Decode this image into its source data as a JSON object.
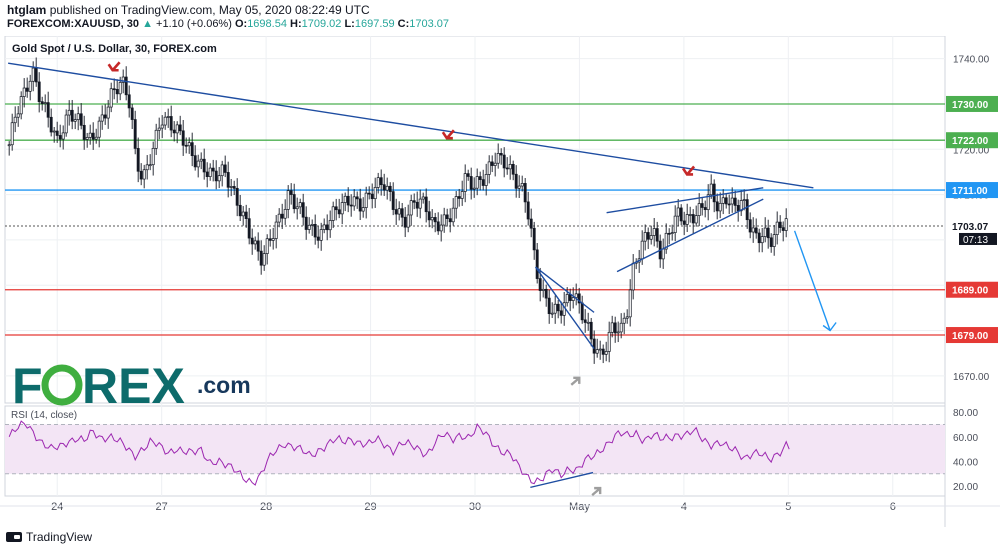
{
  "header": {
    "publisher": "htglam",
    "published_text": "published on TradingView.com, May 05, 2020 08:22:49 UTC",
    "symbol": "FOREXCOM:XAUUSD, 30",
    "change_arrow": "▲",
    "change": "+1.10 (+0.06%)",
    "o_label": "O:",
    "o": "1698.54",
    "h_label": "H:",
    "h": "1709.02",
    "l_label": "L:",
    "l": "1697.59",
    "c_label": "C:",
    "c": "1703.07"
  },
  "footer": {
    "brand": "TradingView"
  },
  "watermark": {
    "text_left": "F",
    "text_right": "REX",
    "suffix": ".com"
  },
  "colors": {
    "up": "#26a69a",
    "down": "#ef5350",
    "candle": "#131722",
    "trend": "#1e4da1",
    "green_level": "#4caf50",
    "blue_level": "#2196f3",
    "red_level": "#e53935",
    "rsi_line": "#9c27b0",
    "rsi_band": "#f3e5f5",
    "arrow_red": "#c62828",
    "arrow_grey": "#9e9e9e",
    "projection": "#2196f3",
    "brand_teal": "#0d6b6b"
  },
  "chart_data": {
    "type": "candlestick",
    "title": "Gold Spot / U.S. Dollar, 30, FOREX.com",
    "ylim": [
      1664,
      1745
    ],
    "y_ticks": [
      1670,
      1680,
      1690,
      1700,
      1710,
      1720,
      1730,
      1740
    ],
    "y_tick_labels": [
      "1670.00",
      "1680.00",
      "1690.00",
      "1700.00",
      "1710.00",
      "1720.00",
      "1730.00",
      "1740.00"
    ],
    "x_ticks": [
      {
        "x": 0.5,
        "label": "24"
      },
      {
        "x": 1.5,
        "label": "27"
      },
      {
        "x": 2.5,
        "label": "28"
      },
      {
        "x": 3.5,
        "label": "29"
      },
      {
        "x": 4.5,
        "label": "30"
      },
      {
        "x": 5.5,
        "label": "May"
      },
      {
        "x": 6.5,
        "label": "4"
      },
      {
        "x": 7.5,
        "label": "5"
      },
      {
        "x": 8.5,
        "label": "6"
      }
    ],
    "xlim": [
      0,
      9
    ],
    "price_levels": [
      {
        "value": 1730.0,
        "label": "1730.00",
        "kind": "green"
      },
      {
        "value": 1722.0,
        "label": "1722.00",
        "kind": "green"
      },
      {
        "value": 1711.0,
        "label": "1711.00",
        "kind": "blue"
      },
      {
        "value": 1689.0,
        "label": "1689.00",
        "kind": "red"
      },
      {
        "value": 1679.0,
        "label": "1679.00",
        "kind": "red"
      }
    ],
    "last_price": {
      "value": 1703.07,
      "label": "1703.07",
      "countdown": "07:13"
    },
    "price_path": [
      [
        0.04,
        1721
      ],
      [
        0.1,
        1727
      ],
      [
        0.2,
        1732
      ],
      [
        0.26,
        1737
      ],
      [
        0.32,
        1733
      ],
      [
        0.42,
        1728
      ],
      [
        0.5,
        1722
      ],
      [
        0.62,
        1727
      ],
      [
        0.72,
        1725
      ],
      [
        0.8,
        1722
      ],
      [
        0.92,
        1727
      ],
      [
        1.02,
        1732
      ],
      [
        1.12,
        1734
      ],
      [
        1.2,
        1729
      ],
      [
        1.25,
        1718
      ],
      [
        1.32,
        1714
      ],
      [
        1.4,
        1720
      ],
      [
        1.5,
        1727
      ],
      [
        1.6,
        1724
      ],
      [
        1.7,
        1722
      ],
      [
        1.8,
        1719
      ],
      [
        1.9,
        1717
      ],
      [
        2.0,
        1714
      ],
      [
        2.1,
        1714
      ],
      [
        2.2,
        1709
      ],
      [
        2.3,
        1705
      ],
      [
        2.4,
        1699
      ],
      [
        2.46,
        1696
      ],
      [
        2.55,
        1700
      ],
      [
        2.64,
        1704
      ],
      [
        2.72,
        1710
      ],
      [
        2.82,
        1708
      ],
      [
        2.92,
        1703
      ],
      [
        3.02,
        1700
      ],
      [
        3.12,
        1704
      ],
      [
        3.22,
        1708
      ],
      [
        3.32,
        1710
      ],
      [
        3.42,
        1708
      ],
      [
        3.52,
        1710
      ],
      [
        3.62,
        1712
      ],
      [
        3.72,
        1708
      ],
      [
        3.82,
        1705
      ],
      [
        3.92,
        1709
      ],
      [
        4.02,
        1707
      ],
      [
        4.1,
        1702
      ],
      [
        4.2,
        1704
      ],
      [
        4.3,
        1708
      ],
      [
        4.4,
        1714
      ],
      [
        4.5,
        1711
      ],
      [
        4.6,
        1713
      ],
      [
        4.7,
        1719
      ],
      [
        4.8,
        1718
      ],
      [
        4.9,
        1713
      ],
      [
        4.96,
        1710
      ],
      [
        5.02,
        1704
      ],
      [
        5.08,
        1693
      ],
      [
        5.14,
        1688
      ],
      [
        5.24,
        1685
      ],
      [
        5.34,
        1686
      ],
      [
        5.44,
        1688
      ],
      [
        5.5,
        1684
      ],
      [
        5.56,
        1681
      ],
      [
        5.62,
        1677
      ],
      [
        5.7,
        1675
      ],
      [
        5.76,
        1678
      ],
      [
        5.82,
        1682
      ],
      [
        5.9,
        1680
      ],
      [
        5.96,
        1684
      ],
      [
        6.02,
        1693
      ],
      [
        6.08,
        1697
      ],
      [
        6.14,
        1701
      ],
      [
        6.2,
        1703
      ],
      [
        6.28,
        1698
      ],
      [
        6.36,
        1702
      ],
      [
        6.44,
        1705
      ],
      [
        6.52,
        1703
      ],
      [
        6.6,
        1705
      ],
      [
        6.68,
        1708
      ],
      [
        6.76,
        1712
      ],
      [
        6.84,
        1707
      ],
      [
        6.9,
        1709
      ],
      [
        6.98,
        1706
      ],
      [
        7.06,
        1708
      ],
      [
        7.12,
        1704
      ],
      [
        7.2,
        1701
      ],
      [
        7.26,
        1703
      ],
      [
        7.32,
        1700
      ],
      [
        7.4,
        1702
      ],
      [
        7.5,
        1703.07
      ]
    ],
    "trendlines": [
      {
        "x1": 0.03,
        "y1": 1739,
        "x2": 7.74,
        "y2": 1711.5
      },
      {
        "x1": 5.76,
        "y1": 1706,
        "x2": 7.26,
        "y2": 1711.5
      },
      {
        "x1": 5.86,
        "y1": 1693,
        "x2": 7.26,
        "y2": 1709
      },
      {
        "x1": 5.08,
        "y1": 1694,
        "x2": 5.64,
        "y2": 1676
      },
      {
        "x1": 5.08,
        "y1": 1694,
        "x2": 5.64,
        "y2": 1684
      }
    ],
    "projection": {
      "x1": 7.56,
      "y1": 1702,
      "x2": 7.9,
      "y2": 1680
    },
    "markers": [
      {
        "x": 1.04,
        "y": 1737,
        "color": "red"
      },
      {
        "x": 4.24,
        "y": 1722,
        "color": "red"
      },
      {
        "x": 6.54,
        "y": 1714,
        "color": "red"
      },
      {
        "x": 5.46,
        "y": 1670,
        "color": "grey",
        "dir": "up"
      },
      {
        "x": 5.66,
        "y_rsi": 20,
        "color": "grey",
        "dir": "up"
      }
    ],
    "rsi": {
      "label": "RSI (14, close)",
      "ylim": [
        12,
        85
      ],
      "ticks": [
        20,
        40,
        60,
        80
      ],
      "tick_labels": [
        "20.00",
        "40.00",
        "60.00",
        "80.00"
      ],
      "band": [
        30,
        70
      ],
      "values": [
        [
          0.04,
          60
        ],
        [
          0.12,
          66
        ],
        [
          0.2,
          71
        ],
        [
          0.28,
          64
        ],
        [
          0.36,
          55
        ],
        [
          0.44,
          49
        ],
        [
          0.52,
          51
        ],
        [
          0.6,
          57
        ],
        [
          0.68,
          60
        ],
        [
          0.76,
          56
        ],
        [
          0.84,
          63
        ],
        [
          0.92,
          59
        ],
        [
          1.0,
          62
        ],
        [
          1.08,
          57
        ],
        [
          1.16,
          50
        ],
        [
          1.24,
          44
        ],
        [
          1.32,
          52
        ],
        [
          1.4,
          57
        ],
        [
          1.48,
          51
        ],
        [
          1.56,
          46
        ],
        [
          1.64,
          52
        ],
        [
          1.72,
          49
        ],
        [
          1.8,
          46
        ],
        [
          1.88,
          48
        ],
        [
          1.96,
          40
        ],
        [
          2.04,
          42
        ],
        [
          2.12,
          36
        ],
        [
          2.2,
          32
        ],
        [
          2.3,
          27
        ],
        [
          2.38,
          24
        ],
        [
          2.44,
          27
        ],
        [
          2.52,
          40
        ],
        [
          2.6,
          50
        ],
        [
          2.68,
          56
        ],
        [
          2.76,
          52
        ],
        [
          2.84,
          48
        ],
        [
          2.92,
          44
        ],
        [
          3.0,
          50
        ],
        [
          3.08,
          54
        ],
        [
          3.16,
          57
        ],
        [
          3.24,
          55
        ],
        [
          3.32,
          59
        ],
        [
          3.4,
          56
        ],
        [
          3.48,
          53
        ],
        [
          3.56,
          57
        ],
        [
          3.64,
          54
        ],
        [
          3.72,
          50
        ],
        [
          3.8,
          55
        ],
        [
          3.88,
          52
        ],
        [
          3.96,
          50
        ],
        [
          4.04,
          47
        ],
        [
          4.12,
          56
        ],
        [
          4.2,
          61
        ],
        [
          4.28,
          57
        ],
        [
          4.36,
          63
        ],
        [
          4.44,
          60
        ],
        [
          4.52,
          66
        ],
        [
          4.6,
          62
        ],
        [
          4.68,
          55
        ],
        [
          4.76,
          49
        ],
        [
          4.84,
          45
        ],
        [
          4.92,
          34
        ],
        [
          5.0,
          28
        ],
        [
          5.08,
          25
        ],
        [
          5.16,
          27
        ],
        [
          5.24,
          32
        ],
        [
          5.32,
          29
        ],
        [
          5.4,
          36
        ],
        [
          5.48,
          33
        ],
        [
          5.56,
          40
        ],
        [
          5.64,
          44
        ],
        [
          5.72,
          52
        ],
        [
          5.8,
          58
        ],
        [
          5.88,
          62
        ],
        [
          5.96,
          60
        ],
        [
          6.04,
          64
        ],
        [
          6.12,
          58
        ],
        [
          6.2,
          61
        ],
        [
          6.28,
          57
        ],
        [
          6.36,
          60
        ],
        [
          6.44,
          63
        ],
        [
          6.52,
          61
        ],
        [
          6.6,
          64
        ],
        [
          6.68,
          58
        ],
        [
          6.76,
          55
        ],
        [
          6.84,
          56
        ],
        [
          6.92,
          50
        ],
        [
          7.0,
          48
        ],
        [
          7.08,
          44
        ],
        [
          7.16,
          48
        ],
        [
          7.24,
          45
        ],
        [
          7.32,
          40
        ],
        [
          7.4,
          47
        ],
        [
          7.48,
          55
        ],
        [
          7.52,
          52
        ]
      ],
      "trendline": {
        "x1": 5.03,
        "y1": 19,
        "x2": 5.63,
        "y2": 31
      }
    }
  }
}
